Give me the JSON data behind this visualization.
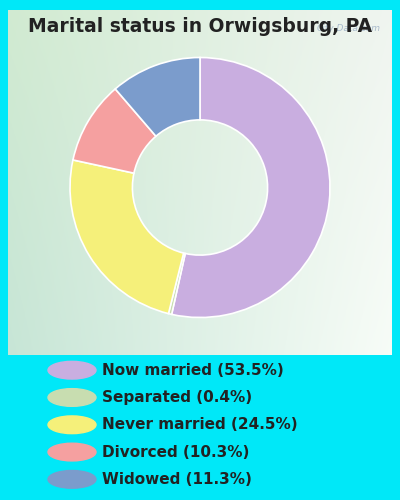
{
  "title": "Marital status in Orwigsburg, PA",
  "slices": [
    {
      "label": "Now married (53.5%)",
      "value": 53.5,
      "color": "#c9aee0"
    },
    {
      "label": "Separated (0.4%)",
      "value": 0.4,
      "color": "#c8ddb0"
    },
    {
      "label": "Never married (24.5%)",
      "value": 24.5,
      "color": "#f5f07a"
    },
    {
      "label": "Divorced (10.3%)",
      "value": 10.3,
      "color": "#f5a0a0"
    },
    {
      "label": "Widowed (11.3%)",
      "value": 11.3,
      "color": "#7b9ccc"
    }
  ],
  "bg_color": "#00e8f8",
  "chart_bg_tl": [
    0.82,
    0.92,
    0.82
  ],
  "chart_bg_tr": [
    0.94,
    0.96,
    0.94
  ],
  "chart_bg_br": [
    0.97,
    0.99,
    0.97
  ],
  "chart_bg_bl": [
    0.78,
    0.9,
    0.84
  ],
  "title_color": "#222222",
  "title_fontsize": 13.5,
  "legend_fontsize": 11,
  "watermark_color": "#aabbcc",
  "figsize": [
    4.0,
    5.0
  ],
  "dpi": 100
}
